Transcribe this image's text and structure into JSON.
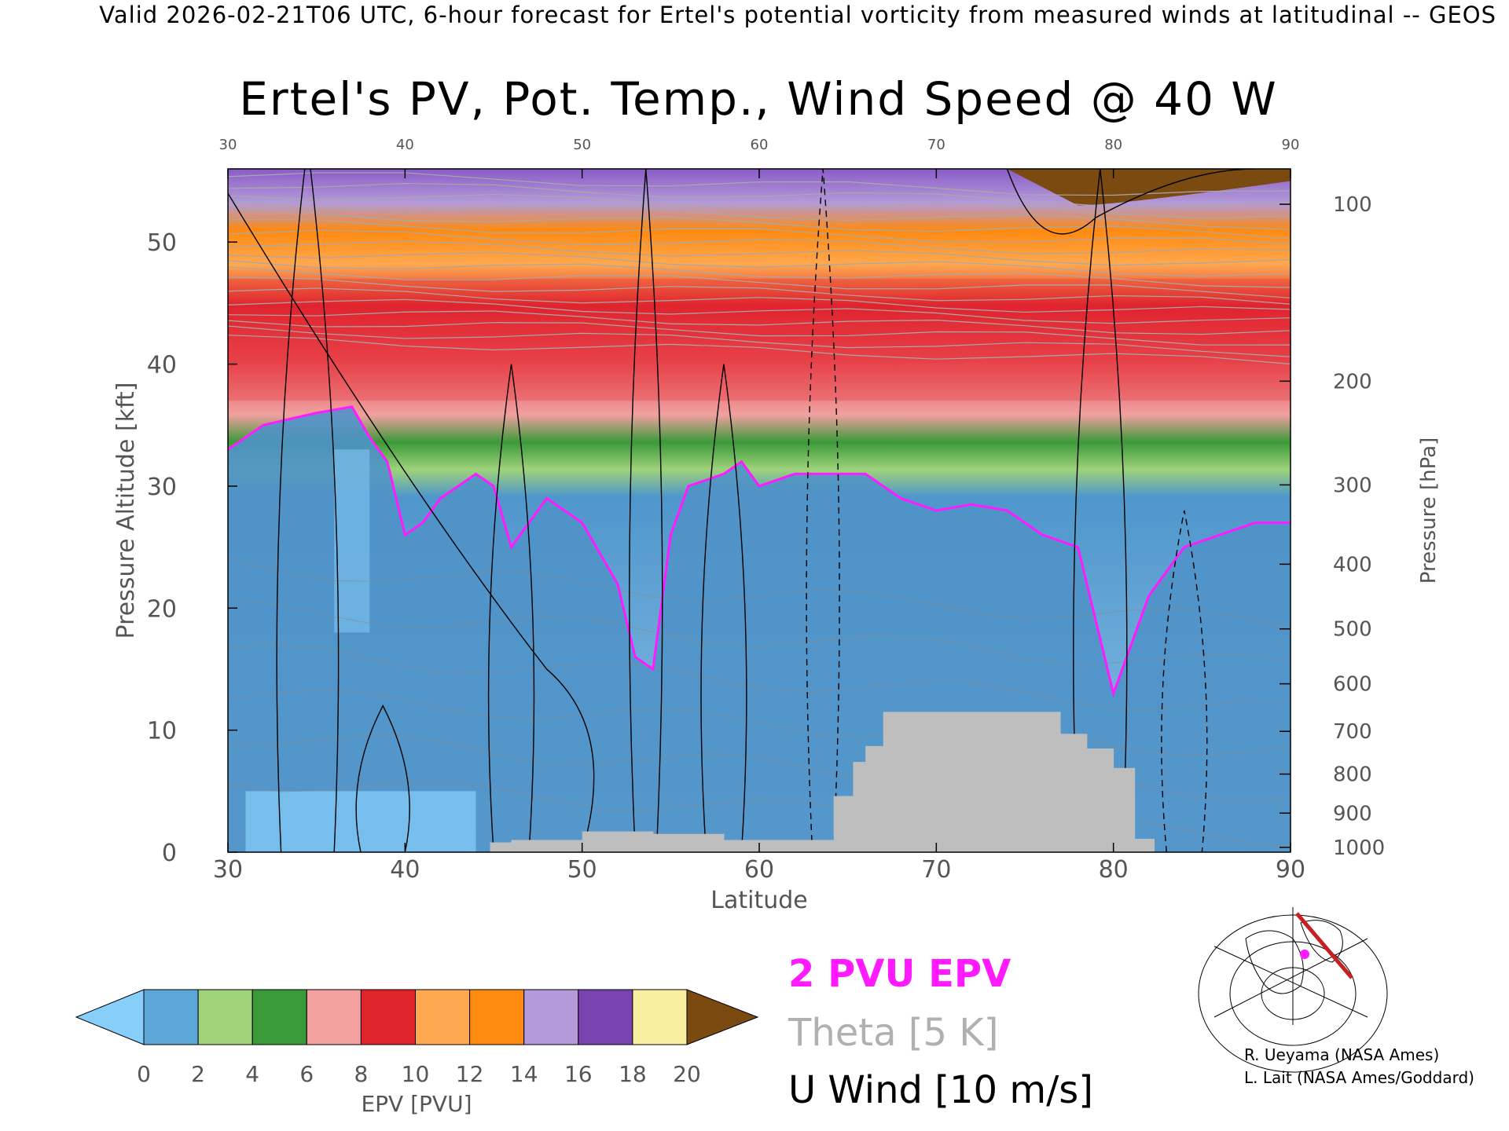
{
  "header": "Valid 2026-02-21T06 UTC, 6-hour forecast for Ertel's potential vorticity from measured winds at latitudinal -- GEOS",
  "chart_data": {
    "type": "heatmap",
    "title": "Ertel's PV, Pot. Temp., Wind Speed @ 40 W",
    "xlabel": "Latitude",
    "ylabel": "Pressure Altitude [kft]",
    "y2label": "Pressure [hPa]",
    "xlim": [
      30,
      90
    ],
    "ylim": [
      0,
      56
    ],
    "x_ticks": [
      "30",
      "40",
      "50",
      "60",
      "70",
      "80",
      "90"
    ],
    "x_top_ticks": [
      "30",
      "40",
      "50",
      "60",
      "70",
      "80",
      "90"
    ],
    "y_ticks": [
      "0",
      "10",
      "20",
      "30",
      "40",
      "50"
    ],
    "pressure_ticks": [
      {
        "label": "100",
        "kft": 53.1
      },
      {
        "label": "200",
        "kft": 38.6
      },
      {
        "label": "300",
        "kft": 30.1
      },
      {
        "label": "400",
        "kft": 23.6
      },
      {
        "label": "500",
        "kft": 18.3
      },
      {
        "label": "600",
        "kft": 13.8
      },
      {
        "label": "700",
        "kft": 9.9
      },
      {
        "label": "800",
        "kft": 6.4
      },
      {
        "label": "900",
        "kft": 3.2
      },
      {
        "label": "1000",
        "kft": 0.4
      }
    ],
    "pv_2pvu_line": {
      "lat": [
        30,
        32,
        35,
        37,
        38,
        39,
        40,
        41,
        42,
        43,
        44,
        45,
        46,
        47,
        48,
        50,
        52,
        53,
        54,
        55,
        56,
        58,
        59,
        60,
        62,
        64,
        66,
        68,
        70,
        72,
        74,
        76,
        78,
        80,
        82,
        84,
        86,
        88,
        90
      ],
      "kft": [
        33,
        35,
        36,
        36.5,
        34,
        32,
        26,
        27,
        29,
        30,
        31,
        30,
        25,
        27,
        29,
        27,
        22,
        16,
        15,
        26,
        30,
        31,
        32,
        30,
        31,
        31,
        31,
        29,
        28,
        28.5,
        28,
        26,
        25,
        13,
        21,
        25,
        26,
        27,
        27
      ]
    },
    "colorbar": {
      "label": "EPV [PVU]",
      "ticks": [
        "0",
        "2",
        "4",
        "6",
        "8",
        "10",
        "12",
        "14",
        "16",
        "18",
        "20"
      ],
      "colors": [
        "#87cefa",
        "#5da7d8",
        "#9fd27a",
        "#3a9a38",
        "#f2a0a0",
        "#e0242e",
        "#ffa850",
        "#ff8a10",
        "#b49ad8",
        "#7a44b0",
        "#f8f0a0",
        "#7a4a10"
      ]
    },
    "legend": {
      "pvu": "2 PVU EPV",
      "theta": "Theta [5 K]",
      "u_wind": "U Wind [10 m/s]"
    }
  },
  "credits": [
    "R. Ueyama (NASA Ames)",
    "L. Lait (NASA Ames/Goddard)"
  ]
}
